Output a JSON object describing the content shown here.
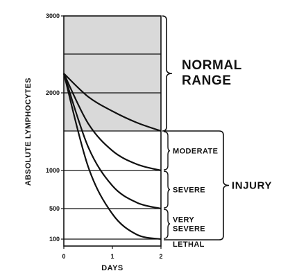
{
  "chart_data": {
    "type": "line",
    "xlabel": "DAYS",
    "ylabel": "ABSOLUTE LYMPHOCYTES",
    "xlim": [
      0,
      2
    ],
    "ylim": [
      0,
      3000
    ],
    "x_ticks": [
      "0",
      "1",
      "2"
    ],
    "y_ticks": [
      "100",
      "500",
      "1000",
      "2000",
      "3000"
    ],
    "y_scale_note": "non-linear (compressed upper range)",
    "normal_range": {
      "label_lines": [
        "NORMAL",
        "RANGE"
      ],
      "low": 1500,
      "high": 3000,
      "shaded": true
    },
    "injury_bracket": {
      "label": "INJURY",
      "low": 100,
      "high": 1500
    },
    "bands": [
      {
        "label_lines": [
          "MODERATE"
        ],
        "low": 1000,
        "high": 1500
      },
      {
        "label_lines": [
          "SEVERE"
        ],
        "low": 500,
        "high": 1000
      },
      {
        "label_lines": [
          "VERY",
          "SEVERE"
        ],
        "low": 100,
        "high": 500
      },
      {
        "label_lines": [
          "LETHAL"
        ],
        "low": 0,
        "high": 100
      }
    ],
    "gridlines_y": [
      2500,
      2000,
      1500,
      1000,
      500,
      100
    ],
    "series": [
      {
        "start": 2250,
        "end": 1500,
        "values": [
          [
            0,
            2250
          ],
          [
            0.5,
            1950
          ],
          [
            1,
            1760
          ],
          [
            1.5,
            1610
          ],
          [
            2,
            1500
          ]
        ]
      },
      {
        "start": 2250,
        "end": 1000,
        "values": [
          [
            0,
            2250
          ],
          [
            0.5,
            1600
          ],
          [
            1,
            1250
          ],
          [
            1.5,
            1080
          ],
          [
            2,
            1000
          ]
        ]
      },
      {
        "start": 2250,
        "end": 500,
        "values": [
          [
            0,
            2250
          ],
          [
            0.5,
            1300
          ],
          [
            1,
            800
          ],
          [
            1.5,
            580
          ],
          [
            2,
            500
          ]
        ]
      },
      {
        "start": 2250,
        "end": 100,
        "values": [
          [
            0,
            2250
          ],
          [
            0.5,
            1050
          ],
          [
            1,
            430
          ],
          [
            1.5,
            160
          ],
          [
            2,
            100
          ]
        ]
      }
    ]
  }
}
